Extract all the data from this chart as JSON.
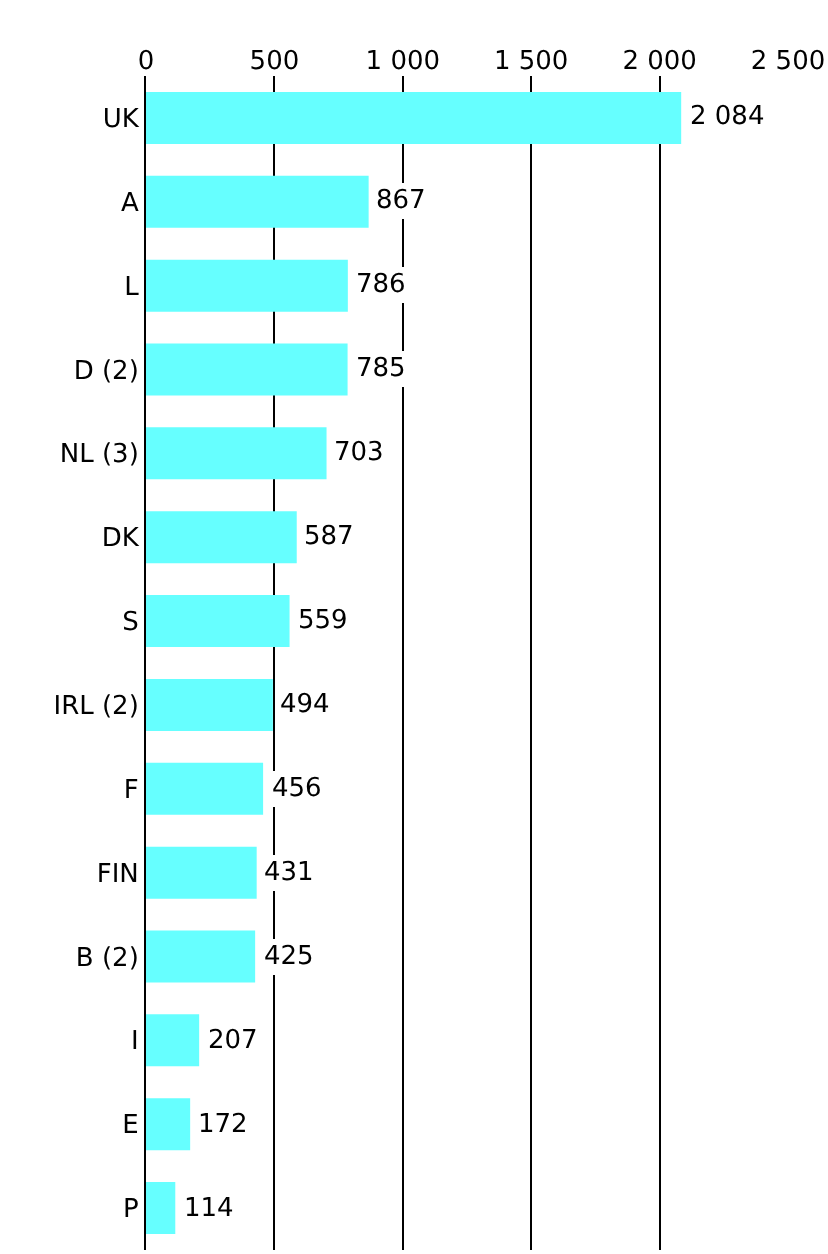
{
  "chart_data": {
    "type": "bar",
    "orientation": "horizontal",
    "categories": [
      "UK",
      "A",
      "L",
      "D (2)",
      "NL (3)",
      "DK",
      "S",
      "IRL (2)",
      "F",
      "FIN",
      "B (2)",
      "I",
      "E",
      "P"
    ],
    "values": [
      2084,
      867,
      786,
      785,
      703,
      587,
      559,
      494,
      456,
      431,
      425,
      207,
      172,
      114
    ],
    "value_labels": [
      "2 084",
      "867",
      "786",
      "785",
      "703",
      "587",
      "559",
      "494",
      "456",
      "431",
      "425",
      "207",
      "172",
      "114"
    ],
    "color": "#66ffff",
    "xlim": [
      0,
      2500
    ],
    "xticks": [
      0,
      500,
      {
        "value": 1000,
        "label": "1 000"
      },
      {
        "value": 1500,
        "label": "1 500"
      },
      {
        "value": 2000,
        "label": "2 000"
      },
      {
        "value": 2500,
        "label": "2 500"
      }
    ],
    "grid": "x"
  }
}
